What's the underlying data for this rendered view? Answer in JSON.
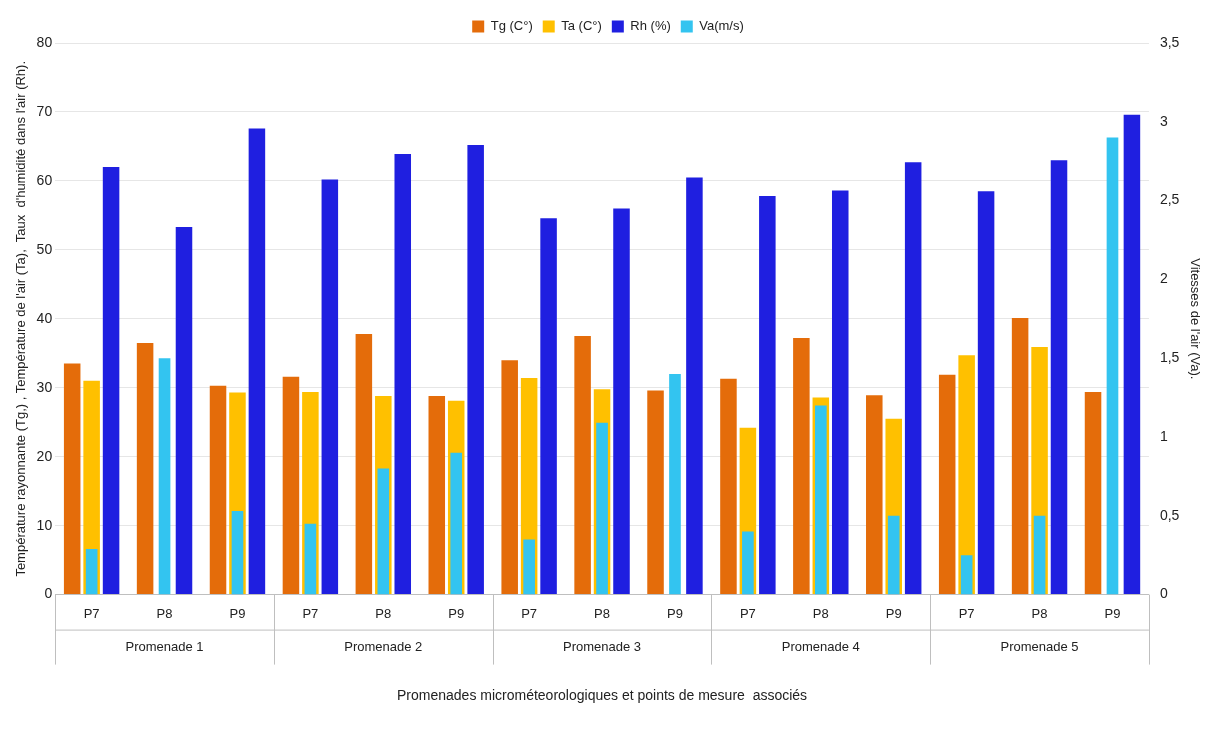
{
  "chart_data": {
    "type": "bar",
    "xlabel": "Promenades microméteorologiques et points de mesure  associés",
    "ylabel": "Température rayonnante (Tg,) , Température de l'air (Ta),  Taux  d'humidité dans l'air (Rh).",
    "y2label": "Vitesses de l'air (Va).",
    "categories": [
      "P7",
      "P8",
      "P9",
      "P7",
      "P8",
      "P9",
      "P7",
      "P8",
      "P9",
      "P7",
      "P8",
      "P9",
      "P7",
      "P8",
      "P9"
    ],
    "series": [
      {
        "name": "Tg (C°)",
        "color": "#e46c0a",
        "values": [
          33.5,
          36.5,
          30.3,
          31.6,
          37.8,
          28.8,
          34,
          37.5,
          29.6,
          31.3,
          37.2,
          28.9,
          31.9,
          40.1,
          29.4
        ]
      },
      {
        "name": "Ta (C°)",
        "color": "#ffc000",
        "values": [
          31,
          null,
          29.3,
          29.4,
          28.8,
          28.1,
          31.4,
          29.8,
          null,
          24.2,
          28.6,
          25.5,
          34.7,
          35.9,
          null
        ]
      },
      {
        "name": "Rh (%)",
        "color": "#1f1fe0",
        "values": [
          62,
          53.3,
          67.6,
          60.2,
          63.9,
          65.2,
          54.6,
          56,
          60.5,
          57.8,
          58.6,
          62.7,
          58.5,
          63,
          69.6
        ]
      },
      {
        "name": "Va(m/s)",
        "color": "#33c4f0",
        "axis": "y2",
        "values": [
          0.29,
          1.5,
          0.53,
          0.45,
          0.8,
          0.9,
          0.35,
          1.09,
          1.4,
          0.4,
          1.2,
          0.5,
          0.25,
          0.5,
          2.9
        ]
      }
    ],
    "ylim": [
      0,
      80
    ],
    "yticks": [
      0,
      10,
      20,
      30,
      40,
      50,
      60,
      70,
      80
    ],
    "y2lim": [
      0,
      3.5
    ],
    "y2ticks": [
      0,
      {
        "value": 0.5,
        "label": "0,5"
      },
      1,
      {
        "value": 1.5,
        "label": "1,5"
      },
      2,
      {
        "value": 2.5,
        "label": "2,5"
      },
      3,
      {
        "value": 3.5,
        "label": "3,5"
      }
    ],
    "annotations": [
      "Promenade 1",
      "Promenade 2",
      "Promenade 3",
      "Promenade 4",
      "Promenade 5"
    ],
    "grid": "y",
    "legend": "top"
  }
}
